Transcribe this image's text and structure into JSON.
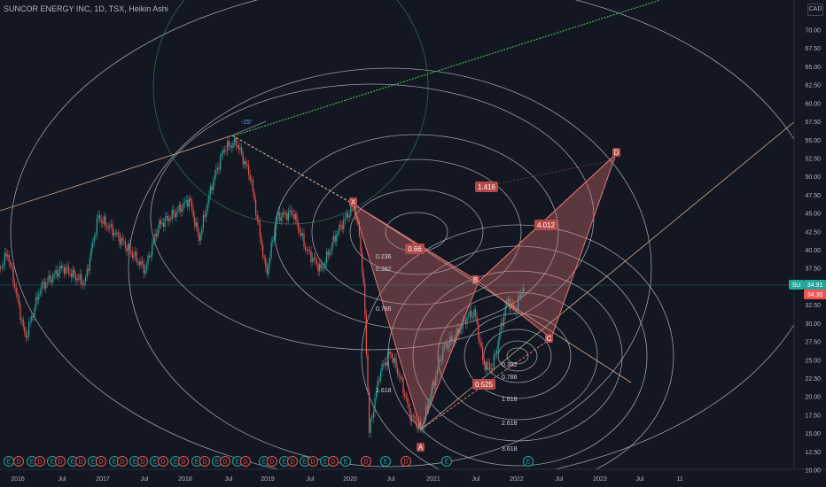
{
  "header": {
    "title": "SUNCOR ENERGY INC, 1D, TSX, Heikin Ashi",
    "currency": "CAD"
  },
  "chart_data": {
    "type": "candlestick",
    "symbol": "SU",
    "ylim": [
      10,
      73
    ],
    "y_ticks": [
      "70.00",
      "67.50",
      "65.00",
      "62.50",
      "60.00",
      "57.50",
      "55.00",
      "52.50",
      "50.00",
      "47.50",
      "45.00",
      "42.50",
      "40.00",
      "37.50",
      "35.00",
      "32.50",
      "30.00",
      "27.50",
      "25.00",
      "22.50",
      "20.00",
      "17.50",
      "15.00",
      "12.50",
      "10.00"
    ],
    "x_ticks": [
      "2016",
      "Jul",
      "2017",
      "Jul",
      "2018",
      "Jul",
      "2019",
      "Jul",
      "2020",
      "Jul",
      "2021",
      "Jul",
      "2022",
      "Jul",
      "2023",
      "Jul",
      "11"
    ],
    "price_labels": [
      {
        "text": "SU",
        "color": "#26a69a"
      },
      {
        "text": "34.91",
        "value": 34.91,
        "color": "#26a69a"
      },
      {
        "text": "34.30",
        "value": 34.3,
        "color": "#ef5350"
      }
    ],
    "harmonic_points": [
      {
        "label": "X",
        "x": "2020-01",
        "y": 44.5
      },
      {
        "label": "A",
        "x": "2020-10",
        "y": 15.0
      },
      {
        "label": "B",
        "x": "2021-06",
        "y": 35.5
      },
      {
        "label": "C",
        "x": "2022-03",
        "y": 28.5
      },
      {
        "label": "D",
        "x": "2023-02",
        "y": 52.5
      }
    ],
    "ratios": [
      "0.66",
      "1.416",
      "4.012",
      "0.525"
    ],
    "fib_levels_upper": [
      "0.236",
      "0.382",
      "0.786",
      "1.618"
    ],
    "fib_levels_lower": [
      "0.382",
      "0.786",
      "1.618",
      "2.618",
      "3.618"
    ],
    "angle_label": "-25°",
    "event_markers": [
      "E",
      "D",
      "E",
      "D",
      "E",
      "D",
      "E",
      "D",
      "E",
      "D",
      "E",
      "D",
      "E",
      "D",
      "E",
      "D",
      "E",
      "D",
      "E",
      "D",
      "E",
      "D",
      "E",
      "D",
      "E",
      "D",
      "E",
      "D",
      "E",
      "D",
      "E",
      "D",
      "E",
      "D",
      "E",
      "D",
      "E",
      "E"
    ],
    "up_color": "#26a69a",
    "down_color": "#ef5350",
    "pattern_color": "#e57373"
  }
}
